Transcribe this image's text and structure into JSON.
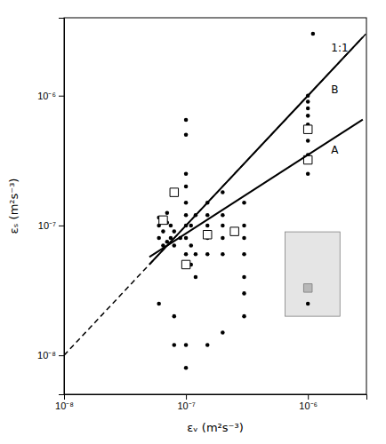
{
  "chart_data": {
    "type": "scatter",
    "xlabel": "εᵥ (m²s⁻³)",
    "ylabel": "εₛ (m²s⁻³)",
    "log": true,
    "grid": false,
    "xlim": [
      1e-08,
      3.01995e-06
    ],
    "ylim": [
      5.01187e-09,
      3.98107e-06
    ],
    "xticks": [
      {
        "value": 1e-08,
        "label": "10⁻⁸"
      },
      {
        "value": 1e-07,
        "label": "10⁻⁷"
      },
      {
        "value": 1e-06,
        "label": "10⁻⁶"
      }
    ],
    "yticks": [
      {
        "value": 1e-08,
        "label": "10⁻⁸"
      },
      {
        "value": 1e-07,
        "label": "10⁻⁷"
      },
      {
        "value": 1e-06,
        "label": "10⁻⁶"
      }
    ],
    "shaded_region": {
      "x": [
        6.5e-07,
        1.831949e-06
      ],
      "y": [
        2e-08,
        8.933672e-08
      ]
    },
    "series": [
      {
        "type": "scatter",
        "marker": "circle",
        "color": "black",
        "x": [
          6e-08,
          6e-08,
          6e-08,
          6.5e-08,
          6.5e-08,
          7e-08,
          7e-08,
          7e-08,
          7.5e-08,
          7.5e-08,
          8e-08,
          8e-08,
          9e-08,
          1e-07,
          1e-07,
          1e-07,
          1e-07,
          1e-07,
          1e-07,
          1e-07,
          1e-07,
          1e-07,
          1.1e-07,
          1.1e-07,
          1.1e-07,
          1.2e-07,
          1.2e-07,
          1.2e-07,
          1.5e-07,
          1.5e-07,
          1.5e-07,
          1.5e-07,
          1.5e-07,
          2e-07,
          2e-07,
          2e-07,
          2e-07,
          2e-07,
          3e-07,
          3e-07,
          3e-07,
          3e-07,
          3e-07,
          1e-06,
          1e-06,
          1e-06,
          1e-06,
          1e-06,
          1e-06,
          1e-06,
          1e-06,
          1.1e-06,
          8e-08,
          8e-08,
          1e-07,
          1e-07,
          1.5e-07,
          2e-07,
          3e-07,
          3e-07,
          1e-06,
          6e-08
        ],
        "values": [
          8e-08,
          1e-07,
          1.15e-07,
          7e-08,
          9e-08,
          7.5e-08,
          1.05e-07,
          1.25e-07,
          8e-08,
          1e-07,
          7e-08,
          9e-08,
          8e-08,
          6e-08,
          8e-08,
          1e-07,
          1.2e-07,
          1.5e-07,
          2e-07,
          2.5e-07,
          5e-07,
          6.5e-07,
          5e-08,
          7e-08,
          1e-07,
          4e-08,
          6e-08,
          1.2e-07,
          6e-08,
          8e-08,
          1e-07,
          1.2e-07,
          1.5e-07,
          6e-08,
          8e-08,
          1e-07,
          1.2e-07,
          1.8e-07,
          4e-08,
          6e-08,
          8e-08,
          1e-07,
          1.5e-07,
          2.5e-07,
          3.5e-07,
          4.5e-07,
          6e-07,
          7e-07,
          8e-07,
          9e-07,
          1e-06,
          3e-06,
          2e-08,
          1.2e-08,
          8e-09,
          1.2e-08,
          1.2e-08,
          1.5e-08,
          2e-08,
          3e-08,
          2.5e-08,
          2.5e-08
        ]
      },
      {
        "type": "scatter",
        "marker": "square",
        "color": "white",
        "x": [
          6.5e-08,
          8e-08,
          1e-07,
          1.5e-07,
          2.5e-07,
          1e-06,
          1e-06
        ],
        "values": [
          1.1e-07,
          1.8e-07,
          5e-08,
          8.5e-08,
          9e-08,
          5.5e-07,
          3.2e-07
        ]
      },
      {
        "type": "scatter",
        "marker": "square",
        "color": "#b8b8b8",
        "x": [
          1e-06
        ],
        "values": [
          3.3e-08
        ]
      },
      {
        "type": "line",
        "line_style": "dashed",
        "color": "black",
        "x": [
          1e-08,
          3.01995e-06
        ],
        "values": [
          1e-08,
          3.01995e-06
        ]
      },
      {
        "type": "line",
        "line_style": "solid",
        "color": "black",
        "x": [
          5.01187e-08,
          7e-08,
          1e-06,
          2.81838e-06
        ],
        "values": [
          5.7185e-08,
          7e-08,
          3.5e-07,
          6.5526e-07
        ]
      },
      {
        "type": "line",
        "line_style": "solid",
        "color": "black",
        "x": [
          5.01187e-08,
          7e-08,
          1e-06,
          2.81838e-06
        ],
        "values": [
          5.01187e-08,
          7e-08,
          1e-06,
          2.81838e-06
        ]
      }
    ],
    "annotations": [
      {
        "text": "1:1",
        "x": 1.55e-06,
        "y": 2.3e-06
      },
      {
        "text": "A",
        "x": 1.55e-06,
        "y": 3.8e-07
      },
      {
        "text": "B",
        "x": 1.55e-06,
        "y": 1.1e-06
      }
    ]
  }
}
